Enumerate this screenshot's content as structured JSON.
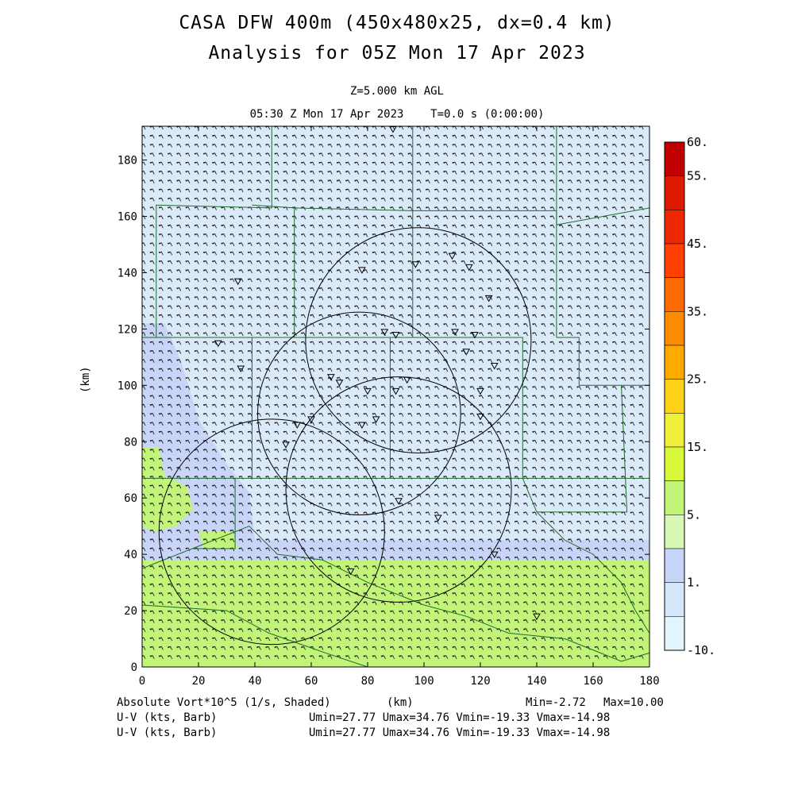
{
  "chart_data": {
    "type": "heatmap",
    "title": "CASA DFW 400m (450x480x25, dx=0.4 km)",
    "subtitle": "Analysis for 05Z Mon 17 Apr 2023",
    "level_label": "Z=5.000 km AGL",
    "time_label": "05:30 Z Mon 17 Apr 2023    T=0.0 s (0:00:00)",
    "xlabel": "(km)",
    "ylabel": "(km)",
    "xlim": [
      0,
      180
    ],
    "ylim": [
      0,
      192
    ],
    "xticks": [
      "0",
      "20",
      "40",
      "60",
      "80",
      "100",
      "120",
      "140",
      "160",
      "180"
    ],
    "yticks": [
      "0",
      "20",
      "40",
      "60",
      "80",
      "100",
      "120",
      "140",
      "160",
      "180"
    ],
    "colorbar_labels": [
      "60.",
      "55.",
      "45.",
      "35.",
      "25.",
      "15.",
      "5.",
      "1.",
      "-10."
    ],
    "colorbar_colors": [
      "#c00000",
      "#dd1a00",
      "#ee2800",
      "#ff3f00",
      "#ff6a00",
      "#ff8c00",
      "#ffaa00",
      "#ffd21a",
      "#f0f03a",
      "#d8f83c",
      "#c2f47a",
      "#d8f8b8",
      "#c8d4f8",
      "#d4e8fa",
      "#e4f4fc"
    ],
    "field_regions": [
      {
        "name": "light blue background",
        "value": 0.5,
        "color": "#dbeaf9"
      },
      {
        "name": "periwinkle region (west)",
        "value": 1.5,
        "color": "#c8d4f8"
      },
      {
        "name": "green band (south)",
        "value": 6.0,
        "color": "#c2f47a"
      }
    ],
    "radar_rings": [
      {
        "cx_km": 98,
        "cy_km": 116,
        "r_km": 40
      },
      {
        "cx_km": 77,
        "cy_km": 90,
        "r_km": 36
      },
      {
        "cx_km": 91,
        "cy_km": 63,
        "r_km": 40
      },
      {
        "cx_km": 46,
        "cy_km": 48,
        "r_km": 40
      }
    ],
    "stats": {
      "min": "Min=-2.72",
      "max": "Max=10.00"
    },
    "shaded_label": "Absolute Vort*10^5 (1/s, Shaded)",
    "barb_rows": [
      {
        "label": "U-V (kts, Barb)",
        "stats": "Umin=27.77 Umax=34.76 Vmin=-19.33 Vmax=-14.98"
      },
      {
        "label": "U-V (kts, Barb)",
        "stats": "Umin=27.77 Umax=34.76 Vmin=-19.33 Vmax=-14.98"
      }
    ]
  }
}
